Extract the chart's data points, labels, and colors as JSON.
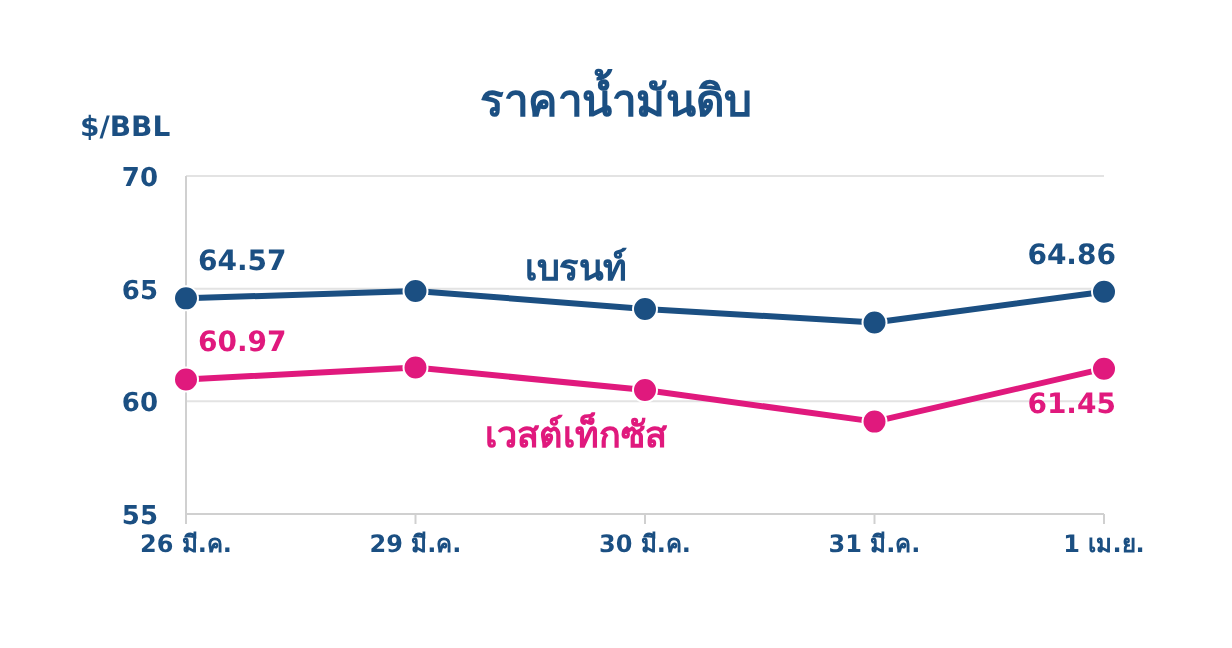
{
  "chart_data": {
    "type": "line",
    "title": "ราคาน้ำมันดิบ",
    "ylabel": "$/BBL",
    "categories": [
      "26 มี.ค.",
      "29 มี.ค.",
      "30 มี.ค.",
      "31 มี.ค.",
      "1 เม.ย."
    ],
    "series": [
      {
        "name": "เบรนท์",
        "color": "#1b4f82",
        "values": [
          64.57,
          64.9,
          64.1,
          63.5,
          64.86
        ],
        "value_labels": [
          "64.57",
          null,
          null,
          null,
          "64.86"
        ]
      },
      {
        "name": "เวสต์เท็กซัส",
        "color": "#e0197d",
        "values": [
          60.97,
          61.5,
          60.5,
          59.1,
          61.45
        ],
        "value_labels": [
          "60.97",
          null,
          null,
          null,
          "61.45"
        ]
      }
    ],
    "ylim": [
      55,
      70
    ],
    "yticks": [
      55,
      60,
      65,
      70
    ],
    "grid": "y",
    "marker": "circle",
    "line_style": "solid"
  }
}
